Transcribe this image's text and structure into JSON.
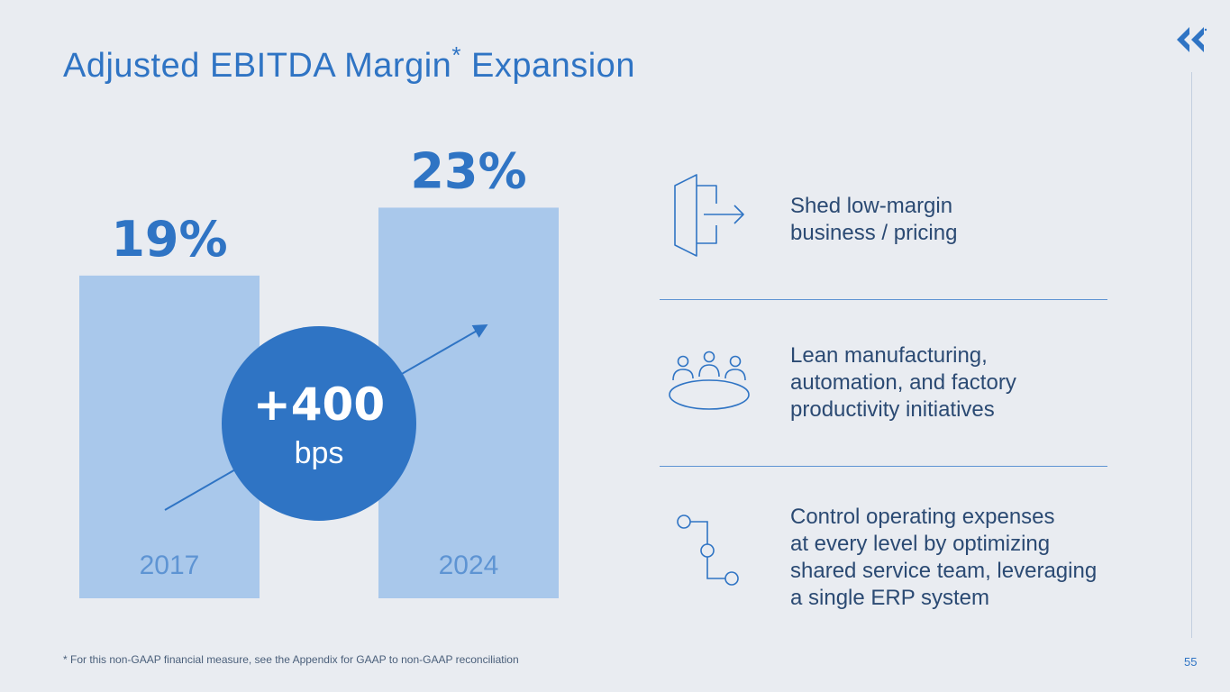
{
  "header": {
    "title": "Adjusted EBITDA Margin",
    "title_mark": "*",
    "title_suffix": " Expansion"
  },
  "logo": {
    "name": "company-logo-icon"
  },
  "chart_data": {
    "type": "bar",
    "categories": [
      "2017",
      "2024"
    ],
    "values": [
      19,
      23
    ],
    "value_labels": [
      "19%",
      "23%"
    ],
    "unit": "%",
    "title": "Adjusted EBITDA Margin",
    "xlabel": "",
    "ylabel": "",
    "ylim": [
      0,
      28
    ],
    "bar_color": "#a9c8eb",
    "label_color": "#2f74c4",
    "category_label_color": "#5e94d3",
    "annotation": {
      "value": "+400",
      "unit": "bps",
      "color": "#2f74c4"
    }
  },
  "initiatives": [
    {
      "icon": "exit-door-arrow-icon",
      "lines": [
        "Shed low-margin",
        "business / pricing"
      ]
    },
    {
      "icon": "team-table-icon",
      "lines": [
        "Lean manufacturing,",
        "automation, and factory",
        "productivity initiatives"
      ]
    },
    {
      "icon": "process-flow-icon",
      "lines": [
        "Control operating expenses",
        "at every level by optimizing",
        "shared service team, leveraging",
        "a single ERP system"
      ]
    }
  ],
  "footer": {
    "footnote": "* For this non-GAAP financial measure, see the Appendix for GAAP to non-GAAP reconciliation",
    "page_number": "55"
  },
  "colors": {
    "background": "#e9ecf1",
    "accent": "#2f74c4",
    "light_accent": "#a9c8eb",
    "text": "#2b4a73"
  }
}
